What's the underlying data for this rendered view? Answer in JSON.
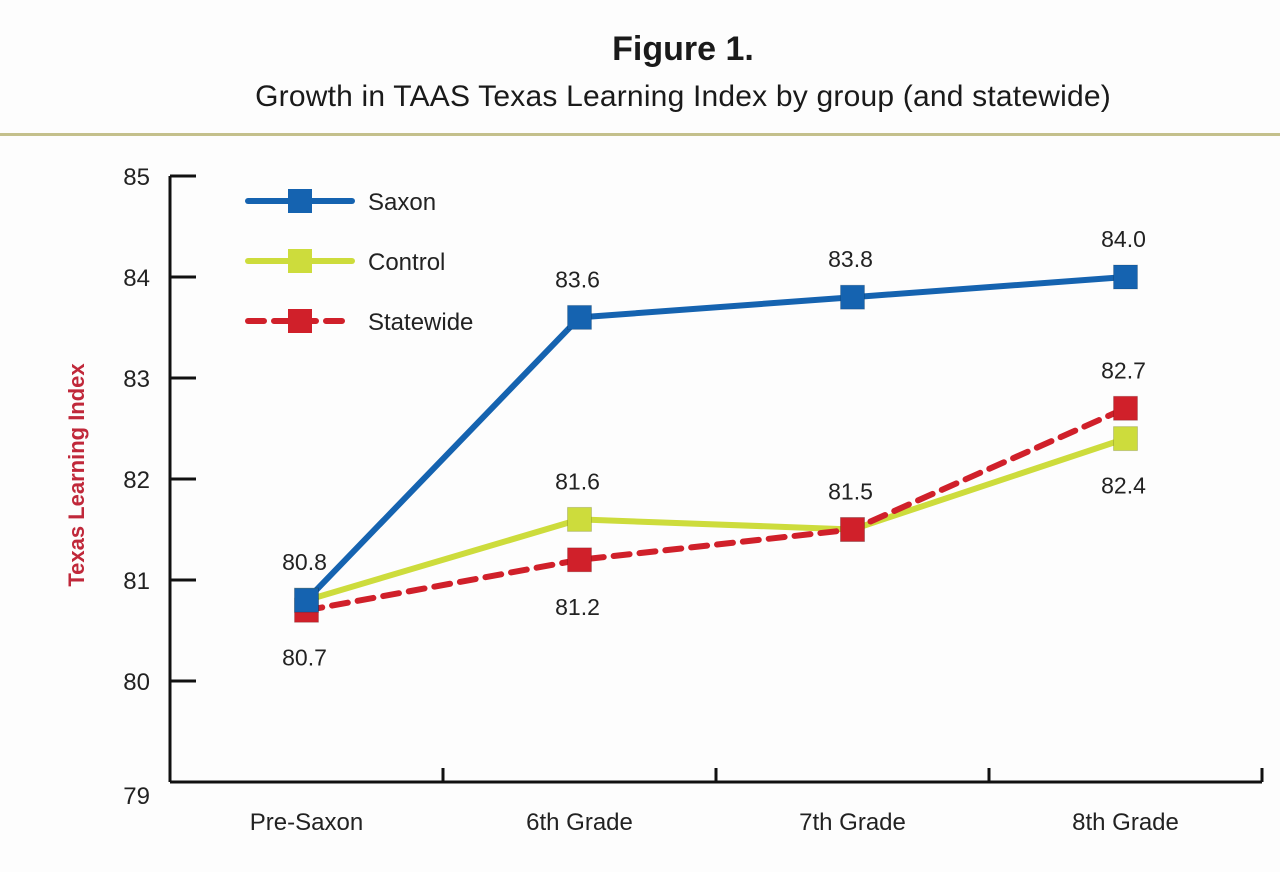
{
  "chart_data": {
    "type": "line",
    "title": "Figure 1.",
    "subtitle": "Growth in TAAS Texas Learning Index by group (and statewide)",
    "xlabel": "",
    "ylabel": "Texas Learning Index",
    "categories": [
      "Pre-Saxon",
      "6th Grade",
      "7th Grade",
      "8th Grade"
    ],
    "ylim": [
      79,
      85
    ],
    "yticks": [
      79,
      80,
      81,
      82,
      83,
      84,
      85
    ],
    "grid": false,
    "legend": {
      "position": "top-left"
    },
    "series": [
      {
        "name": "Saxon",
        "values": [
          80.8,
          83.6,
          83.8,
          84.0
        ],
        "color": "#1563b0",
        "dash": false,
        "labels": [
          "80.8",
          "83.6",
          "83.8",
          "84.0"
        ],
        "label_pos": [
          "above",
          "above",
          "above",
          "above"
        ]
      },
      {
        "name": "Control",
        "values": [
          80.8,
          81.6,
          81.5,
          82.4
        ],
        "color": "#cddc3c",
        "dash": false,
        "labels": [
          null,
          "81.6",
          "81.5",
          "82.4"
        ],
        "label_pos": [
          null,
          "above",
          "above",
          "below"
        ]
      },
      {
        "name": "Statewide",
        "values": [
          80.7,
          81.2,
          81.5,
          82.7
        ],
        "color": "#d0202a",
        "dash": true,
        "labels": [
          "80.7",
          "81.2",
          null,
          "82.7"
        ],
        "label_pos": [
          "below",
          "below",
          null,
          "above"
        ]
      }
    ]
  }
}
